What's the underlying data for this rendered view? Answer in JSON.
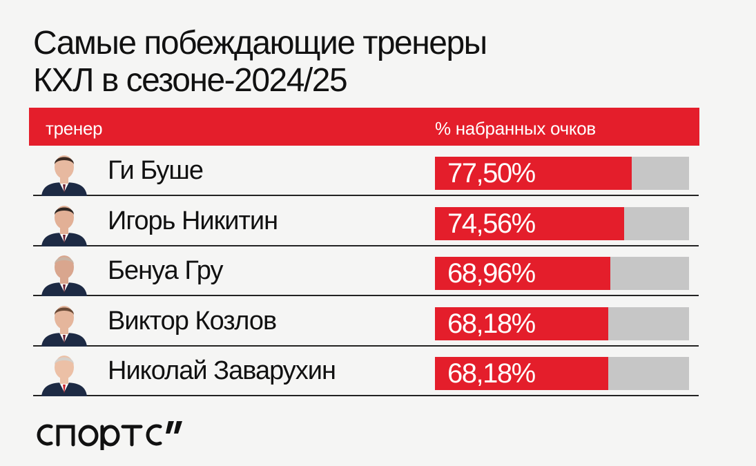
{
  "chart_data": {
    "type": "bar",
    "title": "Самые побеждающие тренеры КХЛ в сезоне-2024/25",
    "title_lines": [
      "Самые побеждающие тренеры",
      "КХЛ в сезоне-2024/25"
    ],
    "header": {
      "coach_label": "тренер",
      "value_label": "% набранных очков"
    },
    "categories": [
      "Ги Буше",
      "Игорь Никитин",
      "Бенуа Гру",
      "Виктор Козлов",
      "Николай Заварухин"
    ],
    "values": [
      77.5,
      74.56,
      68.96,
      68.18,
      68.18
    ],
    "value_labels": [
      "77,50%",
      "74,56%",
      "68,96%",
      "68,18%",
      "68,18%"
    ],
    "xlim": [
      0,
      100
    ],
    "unit": "%",
    "grid": false,
    "legend": "none"
  },
  "rows": [
    {
      "name": "Ги Буше",
      "pct": "77,50%",
      "avatar": "coach-photo"
    },
    {
      "name": "Игорь Никитин",
      "pct": "74,56%",
      "avatar": "coach-photo"
    },
    {
      "name": "Бенуа Гру",
      "pct": "68,96%",
      "avatar": "coach-photo"
    },
    {
      "name": "Виктор Козлов",
      "pct": "68,18%",
      "avatar": "coach-photo"
    },
    {
      "name": "Николай Заварухин",
      "pct": "68,18%",
      "avatar": "coach-photo"
    }
  ],
  "brand": {
    "logo_text": "спортс’’",
    "accent_color": "#e41e2b",
    "track_color": "#c6c6c6",
    "background_color": "#f5f5f4"
  }
}
